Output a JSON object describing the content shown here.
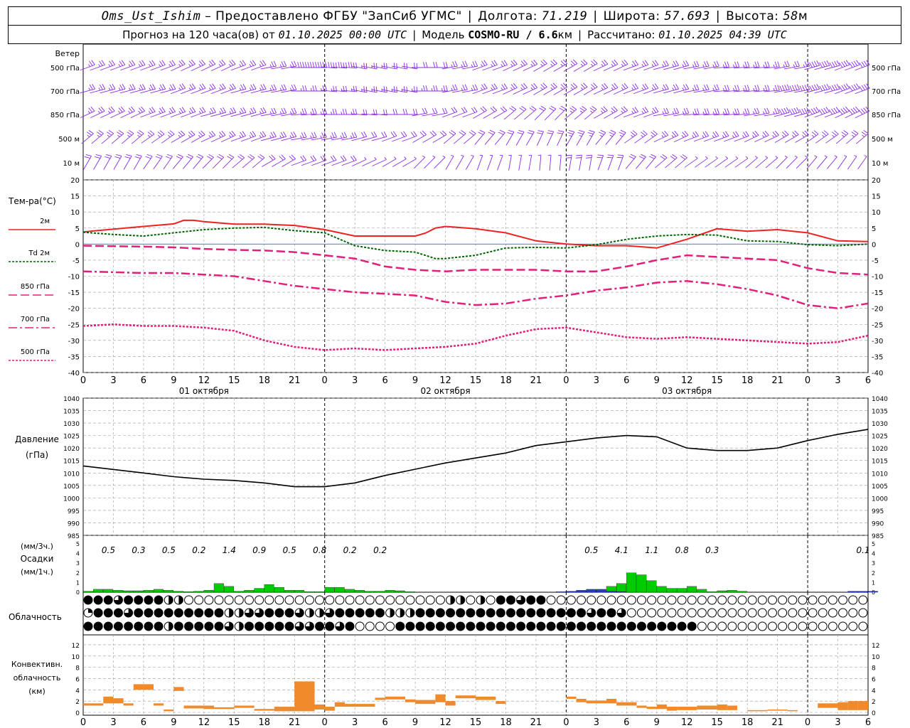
{
  "header": {
    "station": "Oms_Ust_Ishim",
    "provided_by": "– Предоставлено ФГБУ \"ЗапСиб УГМС\"",
    "lon_label": "Долгота:",
    "lon_value": "71.219",
    "lat_label": "Широта:",
    "lat_value": "57.693",
    "alt_label": "Высота:",
    "alt_value": "58",
    "alt_unit": "м",
    "forecast_label": "Прогноз на 120 часа(ов) от",
    "forecast_start": "01.10.2025 00:00 UTC",
    "model_label": "Модель",
    "model_name": "COSMO-RU / 6.6",
    "model_unit": "км",
    "computed_label": "Рассчитано:",
    "computed_value": "01.10.2025 04:39 UTC"
  },
  "colors": {
    "wind": "#8a2be2",
    "t2m": "#ee2222",
    "td2m": "#006400",
    "t850": "#e0207a",
    "t700": "#e0207a",
    "t500": "#e0207a",
    "pressure": "#000000",
    "precip_rain": "#00cc00",
    "precip_snow": "#1f3fd0",
    "conv": "#f08a2a",
    "grid": "#999999",
    "zero": "#3f5fff"
  },
  "x_axis": {
    "tick_labels": [
      "0",
      "3",
      "6",
      "9",
      "12",
      "15",
      "18",
      "21",
      "0",
      "3",
      "6",
      "9",
      "12",
      "15",
      "18",
      "21",
      "0",
      "3",
      "6",
      "9",
      "12",
      "15",
      "18",
      "21",
      "0",
      "3",
      "6"
    ],
    "day_labels": [
      "01 октября",
      "02 октября",
      "03 октября"
    ]
  },
  "wind_panel": {
    "title": "Ветер",
    "levels": [
      "500 гПа",
      "700 гПа",
      "850 гПа",
      "500 м",
      "10  м"
    ]
  },
  "temp_panel": {
    "title": "Тем-ра(°C)",
    "legend": [
      {
        "label": "2м",
        "key": "t2m"
      },
      {
        "label": "Td  2м",
        "key": "td2m"
      },
      {
        "label": "850 гПа",
        "key": "t850"
      },
      {
        "label": "700 гПа",
        "key": "t700"
      },
      {
        "label": "500 гПа",
        "key": "t500"
      }
    ],
    "yticks": [
      "20",
      "15",
      "10",
      "5",
      "0",
      "-5",
      "-10",
      "-15",
      "-20",
      "-25",
      "-30",
      "-35",
      "-40"
    ]
  },
  "pressure_panel": {
    "title": "Давление",
    "unit": "(гПа)",
    "yticks": [
      "1040",
      "1035",
      "1030",
      "1025",
      "1020",
      "1015",
      "1010",
      "1005",
      "1000",
      "995",
      "990",
      "985"
    ]
  },
  "precip_panel": {
    "label_top": "(мм/3ч.)",
    "title": "Осадки",
    "unit": "(мм/1ч.)",
    "yticks": [
      "5",
      "4",
      "3",
      "2",
      "1",
      "0"
    ],
    "totals": [
      {
        "h": 3,
        "v": "0.5"
      },
      {
        "h": 6,
        "v": "0.3"
      },
      {
        "h": 9,
        "v": "0.5"
      },
      {
        "h": 12,
        "v": "0.2"
      },
      {
        "h": 15,
        "v": "1.4"
      },
      {
        "h": 18,
        "v": "0.9"
      },
      {
        "h": 21,
        "v": "0.5"
      },
      {
        "h": 24,
        "v": "0.8"
      },
      {
        "h": 27,
        "v": "0.2"
      },
      {
        "h": 30,
        "v": "0.2"
      },
      {
        "h": 51,
        "v": "0.5"
      },
      {
        "h": 54,
        "v": "4.1"
      },
      {
        "h": 57,
        "v": "1.1"
      },
      {
        "h": 60,
        "v": "0.8"
      },
      {
        "h": 63,
        "v": "0.3"
      },
      {
        "h": 78,
        "v": "0.1"
      }
    ]
  },
  "cloud_panel": {
    "title": "Облачность",
    "rows": [
      "444443334444444222220000000000000000000000000000000000000000000000000000202202230244443344400000000000000000000000000000000000000000000000000000000000000",
      "144444443444444444444444444222223333444444322223344444444442222222444444444444444444444444444444444434444432000000000000000000000000000000000000000000000",
      "444444444444444424444444444432224444434442333044423443000000004444444444444444444444444444444444444443444444444444444344400000000000000000000000000000000"
    ]
  },
  "conv_panel": {
    "title1": "Конвективн.",
    "title2": "облачность",
    "unit": "(км)",
    "yticks": [
      "12",
      "10",
      "8",
      "6",
      "4",
      "2",
      "0"
    ]
  },
  "chart_data": [
    {
      "type": "line",
      "title": "Тем-ра(°C)",
      "x_unit": "hours from 01.10.2025 00:00 UTC",
      "ylim": [
        -40,
        20
      ],
      "grid": true,
      "series": [
        {
          "name": "2м",
          "x": [
            0,
            6,
            9,
            10,
            11,
            12,
            15,
            18,
            21,
            24,
            27,
            30,
            33,
            34,
            35,
            36,
            39,
            42,
            45,
            48,
            51,
            54,
            57,
            60,
            63,
            66,
            69,
            72,
            75,
            78
          ],
          "values": [
            3.8,
            5.5,
            6.3,
            7.4,
            7.4,
            7,
            6.2,
            6.2,
            5.8,
            4.5,
            2.5,
            2.5,
            2.5,
            3.4,
            5,
            5.5,
            4.8,
            3.5,
            1,
            0,
            -0.5,
            -0.5,
            -1.2,
            1.5,
            4.8,
            4,
            4.5,
            3.5,
            1,
            0.8
          ]
        },
        {
          "name": "Td  2м",
          "x": [
            0,
            3,
            6,
            9,
            12,
            15,
            18,
            21,
            24,
            27,
            30,
            33,
            35,
            36,
            39,
            42,
            45,
            48,
            51,
            54,
            57,
            60,
            63,
            66,
            69,
            72,
            75,
            78
          ],
          "values": [
            3.7,
            3,
            2.5,
            3.5,
            4.5,
            5,
            5.2,
            4.2,
            3.5,
            -0.5,
            -2,
            -2.5,
            -4.5,
            -4.5,
            -3.5,
            -1.2,
            -1,
            -1.2,
            -0.2,
            1.5,
            2.5,
            3,
            2.8,
            1,
            0.8,
            -0.2,
            -0.5,
            0
          ]
        },
        {
          "name": "850 гПа",
          "x": [
            0,
            6,
            9,
            12,
            15,
            18,
            21,
            24,
            27,
            30,
            33,
            36,
            39,
            42,
            45,
            48,
            51,
            54,
            57,
            60,
            63,
            66,
            69,
            72,
            75,
            78
          ],
          "values": [
            -0.5,
            -0.8,
            -1,
            -1.5,
            -1.8,
            -2,
            -2.5,
            -3.5,
            -4.5,
            -7,
            -8,
            -8.5,
            -8,
            -8,
            -8,
            -8.5,
            -8.5,
            -7,
            -5,
            -3.5,
            -4,
            -4.5,
            -5,
            -7.5,
            -9,
            -9.5
          ]
        },
        {
          "name": "700 гПа",
          "x": [
            0,
            6,
            9,
            12,
            15,
            18,
            21,
            24,
            27,
            30,
            33,
            36,
            39,
            42,
            45,
            48,
            51,
            54,
            57,
            60,
            63,
            66,
            69,
            72,
            75,
            78
          ],
          "values": [
            -8.5,
            -9,
            -9,
            -9.5,
            -10,
            -11.5,
            -13,
            -14,
            -15,
            -15.5,
            -16,
            -18,
            -19,
            -18.5,
            -17,
            -16,
            -14.5,
            -13.5,
            -12,
            -11.5,
            -12.5,
            -14,
            -16,
            -19,
            -20,
            -18.5
          ]
        },
        {
          "name": "500 гПа",
          "x": [
            0,
            3,
            6,
            9,
            12,
            15,
            18,
            21,
            24,
            27,
            30,
            33,
            36,
            39,
            42,
            45,
            48,
            51,
            54,
            57,
            60,
            63,
            66,
            69,
            72,
            75,
            78
          ],
          "values": [
            -25.5,
            -25,
            -25.5,
            -25.5,
            -26,
            -27,
            -30,
            -32,
            -33,
            -32.5,
            -33,
            -32.5,
            -32,
            -31,
            -28.5,
            -26.5,
            -26,
            -27.5,
            -29,
            -29.5,
            -29,
            -29.5,
            -30,
            -30.5,
            -31,
            -30.5,
            -28.5
          ]
        }
      ]
    },
    {
      "type": "line",
      "title": "Давление",
      "ylabel": "(гПа)",
      "ylim": [
        985,
        1040
      ],
      "x": [
        0,
        6,
        9,
        12,
        15,
        18,
        21,
        24,
        27,
        30,
        33,
        36,
        39,
        42,
        45,
        48,
        51,
        54,
        57,
        60,
        63,
        66,
        69,
        72,
        75,
        78
      ],
      "values": [
        1012.8,
        1010,
        1008.5,
        1007.5,
        1007,
        1006,
        1004.5,
        1004.5,
        1006,
        1009,
        1011.5,
        1014,
        1016,
        1018,
        1021,
        1022.5,
        1024,
        1025,
        1024.5,
        1020,
        1019,
        1019,
        1020,
        1023,
        1025.5,
        1027.5
      ],
      "grid": true
    },
    {
      "type": "bar",
      "title": "Осадки",
      "ylabel": "(мм/1ч.)",
      "ylim": [
        0,
        5
      ],
      "series": [
        {
          "name": "rain",
          "x": [
            0,
            1,
            2,
            3,
            4,
            5,
            6,
            7,
            8,
            9,
            10,
            11,
            12,
            13,
            14,
            15,
            16,
            17,
            18,
            19,
            20,
            21,
            22,
            23,
            24,
            25,
            26,
            27,
            28,
            29,
            30,
            31,
            32,
            50,
            51,
            52,
            53,
            54,
            55,
            56,
            57,
            58,
            59,
            60,
            61,
            62,
            63,
            64,
            65
          ],
          "values": [
            0.1,
            0.3,
            0.3,
            0.2,
            0.15,
            0.15,
            0.2,
            0.3,
            0.2,
            0.1,
            0.05,
            0.1,
            0.2,
            0.9,
            0.6,
            0.1,
            0.2,
            0.4,
            0.8,
            0.5,
            0.2,
            0.2,
            0.05,
            0.05,
            0.5,
            0.5,
            0.3,
            0.2,
            0.1,
            0.1,
            0.2,
            0.15,
            0.05,
            0.1,
            0.2,
            0.6,
            0.9,
            2,
            1.8,
            1.2,
            0.6,
            0.4,
            0.4,
            0.6,
            0.3,
            0.05,
            0.15,
            0.2,
            0.1
          ]
        },
        {
          "name": "snow",
          "x": [
            47,
            48,
            49,
            50,
            51,
            52,
            53,
            76,
            77,
            78
          ],
          "values": [
            0.05,
            0.1,
            0.2,
            0.3,
            0.3,
            0.1,
            0.05,
            0.1,
            0.1,
            0.1
          ]
        }
      ]
    },
    {
      "type": "bar",
      "title": "Конвективн. облачность",
      "ylabel": "(км)",
      "ylim": [
        0,
        13
      ],
      "bars": [
        {
          "x0": 0,
          "x1": 2,
          "b": 1.2,
          "t": 1.6
        },
        {
          "x0": 2,
          "x1": 3,
          "b": 1.6,
          "t": 2.8
        },
        {
          "x0": 3,
          "x1": 4,
          "b": 1.6,
          "t": 2.5
        },
        {
          "x0": 4,
          "x1": 5,
          "b": 1.2,
          "t": 1.6
        },
        {
          "x0": 5,
          "x1": 6,
          "b": 4,
          "t": 5
        },
        {
          "x0": 6,
          "x1": 7,
          "b": 4,
          "t": 5
        },
        {
          "x0": 7,
          "x1": 8,
          "b": 1.2,
          "t": 1.6
        },
        {
          "x0": 8,
          "x1": 9,
          "b": 0.2,
          "t": 0.5
        },
        {
          "x0": 9,
          "x1": 10,
          "b": 3.8,
          "t": 4.5
        },
        {
          "x0": 10,
          "x1": 12,
          "b": 0.7,
          "t": 1.2
        },
        {
          "x0": 12,
          "x1": 13,
          "b": 0.6,
          "t": 1.2
        },
        {
          "x0": 13,
          "x1": 15,
          "b": 0.6,
          "t": 0.9
        },
        {
          "x0": 15,
          "x1": 17,
          "b": 0.8,
          "t": 1.2
        },
        {
          "x0": 17,
          "x1": 19,
          "b": 0.3,
          "t": 0.6
        },
        {
          "x0": 19,
          "x1": 21,
          "b": 0.2,
          "t": 1
        },
        {
          "x0": 21,
          "x1": 23,
          "b": 0.2,
          "t": 5.5
        },
        {
          "x0": 23,
          "x1": 24,
          "b": 0.5,
          "t": 1.4
        },
        {
          "x0": 24,
          "x1": 25,
          "b": 0.3,
          "t": 1
        },
        {
          "x0": 25,
          "x1": 26,
          "b": 1,
          "t": 1.8
        },
        {
          "x0": 26,
          "x1": 27,
          "b": 1,
          "t": 1.5
        },
        {
          "x0": 27,
          "x1": 29,
          "b": 1,
          "t": 1.5
        },
        {
          "x0": 29,
          "x1": 30,
          "b": 2.2,
          "t": 2.6
        },
        {
          "x0": 30,
          "x1": 32,
          "b": 2.3,
          "t": 2.8
        },
        {
          "x0": 32,
          "x1": 33,
          "b": 1.8,
          "t": 2.3
        },
        {
          "x0": 33,
          "x1": 35,
          "b": 1.5,
          "t": 2.2
        },
        {
          "x0": 35,
          "x1": 36,
          "b": 1.8,
          "t": 3.2
        },
        {
          "x0": 36,
          "x1": 37,
          "b": 1.2,
          "t": 2
        },
        {
          "x0": 37,
          "x1": 39,
          "b": 2.5,
          "t": 3
        },
        {
          "x0": 39,
          "x1": 41,
          "b": 2.2,
          "t": 2.8
        },
        {
          "x0": 41,
          "x1": 42,
          "b": 1.5,
          "t": 2
        },
        {
          "x0": 48,
          "x1": 49,
          "b": 2.4,
          "t": 2.8
        },
        {
          "x0": 49,
          "x1": 50,
          "b": 1.8,
          "t": 2.4
        },
        {
          "x0": 50,
          "x1": 52,
          "b": 1.6,
          "t": 2.1
        },
        {
          "x0": 52,
          "x1": 53,
          "b": 1.6,
          "t": 2.4
        },
        {
          "x0": 53,
          "x1": 55,
          "b": 1.2,
          "t": 1.8
        },
        {
          "x0": 55,
          "x1": 56,
          "b": 0.8,
          "t": 1.2
        },
        {
          "x0": 56,
          "x1": 57,
          "b": 0.6,
          "t": 1
        },
        {
          "x0": 57,
          "x1": 58,
          "b": 0.6,
          "t": 1.4
        },
        {
          "x0": 58,
          "x1": 59,
          "b": 0.3,
          "t": 1
        },
        {
          "x0": 59,
          "x1": 61,
          "b": 0.4,
          "t": 1
        },
        {
          "x0": 61,
          "x1": 63,
          "b": 0.5,
          "t": 1.2
        },
        {
          "x0": 63,
          "x1": 64,
          "b": 0.4,
          "t": 1.4
        },
        {
          "x0": 64,
          "x1": 65,
          "b": 0.4,
          "t": 1.2
        },
        {
          "x0": 66,
          "x1": 68,
          "b": 0.2,
          "t": 0.4
        },
        {
          "x0": 68,
          "x1": 70,
          "b": 0.3,
          "t": 0.5
        },
        {
          "x0": 70,
          "x1": 71,
          "b": 0.2,
          "t": 0.4
        },
        {
          "x0": 73,
          "x1": 75,
          "b": 0.8,
          "t": 1.6
        },
        {
          "x0": 75,
          "x1": 76,
          "b": 0.4,
          "t": 1.8
        },
        {
          "x0": 76,
          "x1": 77,
          "b": 0.4,
          "t": 2
        },
        {
          "x0": 77,
          "x1": 78,
          "b": 0.4,
          "t": 2
        }
      ]
    },
    {
      "type": "scatter",
      "title": "Ветер",
      "levels": [
        "500 гПа",
        "700 гПа",
        "850 гПа",
        "500 м",
        "10  м"
      ],
      "speed_ms": [
        [
          15,
          15,
          15,
          15,
          15,
          15,
          15,
          18,
          20,
          15,
          10,
          10,
          15,
          15,
          15,
          15,
          15,
          15,
          15,
          15,
          15,
          15,
          15,
          15,
          20,
          20,
          20
        ],
        [
          15,
          15,
          15,
          15,
          15,
          15,
          15,
          15,
          15,
          15,
          15,
          15,
          15,
          15,
          15,
          15,
          15,
          15,
          15,
          15,
          15,
          15,
          15,
          20,
          20,
          20,
          20
        ],
        [
          15,
          15,
          15,
          15,
          15,
          15,
          15,
          15,
          15,
          10,
          10,
          10,
          10,
          10,
          10,
          10,
          15,
          15,
          15,
          15,
          15,
          15,
          15,
          20,
          20,
          20,
          20
        ],
        [
          15,
          15,
          15,
          15,
          15,
          15,
          15,
          15,
          15,
          10,
          10,
          10,
          10,
          10,
          10,
          10,
          15,
          15,
          15,
          15,
          15,
          15,
          15,
          15,
          15,
          15,
          15
        ],
        [
          10,
          10,
          10,
          10,
          10,
          10,
          10,
          10,
          10,
          5,
          5,
          5,
          5,
          5,
          5,
          5,
          10,
          10,
          10,
          10,
          5,
          5,
          5,
          5,
          5,
          5,
          5
        ]
      ]
    }
  ]
}
